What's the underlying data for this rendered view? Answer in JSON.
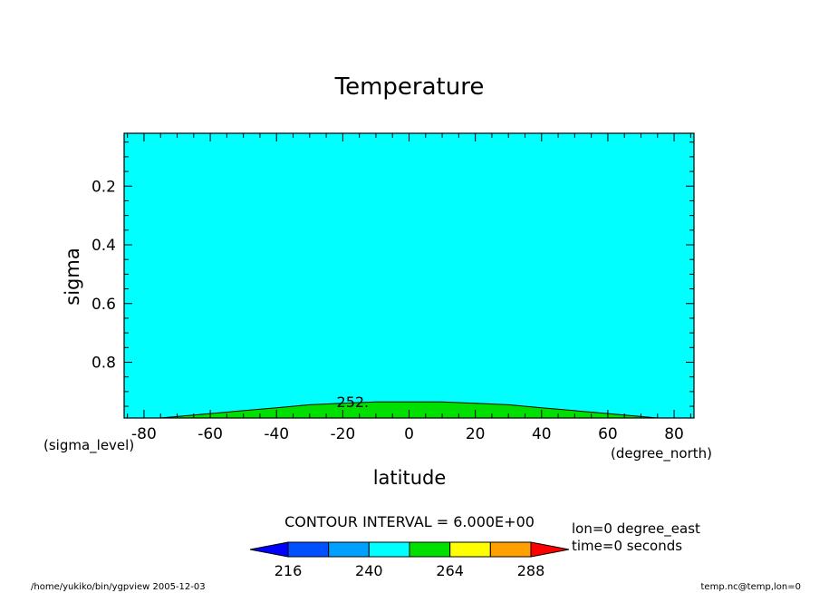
{
  "chart_data": {
    "type": "contour",
    "title": "Temperature",
    "xlabel": "latitude",
    "ylabel": "sigma",
    "x_unit": "(degree_north)",
    "y_unit": "(sigma_level)",
    "xlim": [
      -86,
      86
    ],
    "ylim": [
      0.02,
      0.99
    ],
    "y_inverted": true,
    "x_ticks": [
      -80,
      -60,
      -40,
      -20,
      0,
      20,
      40,
      60,
      80
    ],
    "x_tick_labels": [
      "-80",
      "-60",
      "-40",
      "-20",
      "0",
      "20",
      "40",
      "60",
      "80"
    ],
    "y_ticks": [
      0.2,
      0.4,
      0.6,
      0.8
    ],
    "y_tick_labels": [
      "0.2",
      "0.4",
      "0.6",
      "0.8"
    ],
    "contour_value_label": "252.",
    "contour_252": {
      "x": [
        -75,
        -60,
        -40,
        -30,
        -20,
        -10,
        0,
        10,
        20,
        30,
        40,
        60,
        75
      ],
      "y": [
        0.99,
        0.975,
        0.955,
        0.945,
        0.94,
        0.935,
        0.935,
        0.935,
        0.94,
        0.945,
        0.955,
        0.975,
        0.99
      ]
    },
    "fill_colors": {
      "upper": "#00ffff",
      "lower": "#00e000"
    },
    "colorbar": {
      "levels": [
        216,
        228,
        240,
        252,
        264,
        276,
        288
      ],
      "colors": [
        "#0000ff",
        "#0050ff",
        "#00a0ff",
        "#00ffff",
        "#00e000",
        "#ffff00",
        "#ffa000",
        "#ff0000"
      ],
      "tick_values": [
        216,
        240,
        264,
        288
      ],
      "tick_labels": [
        "216",
        "240",
        "264",
        "288"
      ]
    },
    "contour_interval": "CONTOUR INTERVAL = 6.000E+00",
    "info_lines": [
      "lon=0 degree_east",
      "time=0 seconds"
    ],
    "footer_left": "/home/yukiko/bin/ygpview  2005-12-03",
    "footer_right": "temp.nc@temp,lon=0"
  }
}
